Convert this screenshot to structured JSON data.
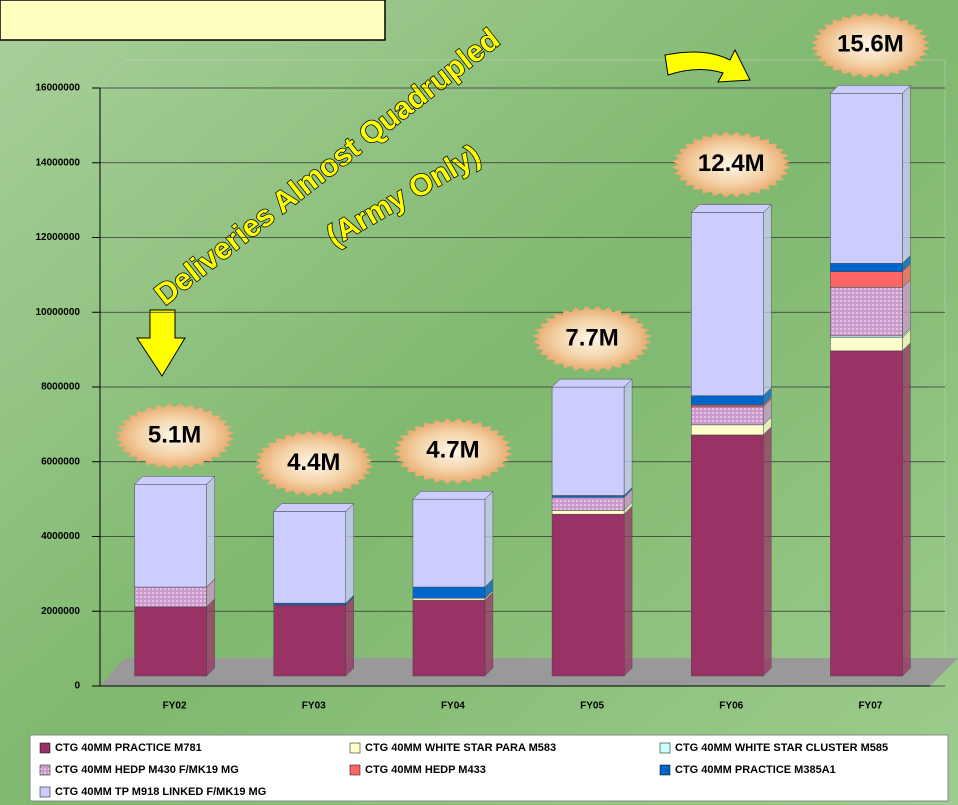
{
  "chart_data": {
    "type": "stacked_bar",
    "annotations": [
      "Deliveries Almost Quadrupled",
      "(Army Only)"
    ],
    "total_labels": [
      "5.1M",
      "4.4M",
      "4.7M",
      "7.7M",
      "12.4M",
      "15.6M"
    ],
    "categories": [
      "FY02",
      "FY03",
      "FY04",
      "FY05",
      "FY06",
      "FY07"
    ],
    "series": [
      {
        "name": "CTG 40MM PRACTICE M781",
        "color": "#993366",
        "values": [
          1850000,
          1900000,
          2030000,
          4330000,
          6450000,
          8700000
        ]
      },
      {
        "name": "CTG 40MM WHITE STAR PARA M583",
        "color": "#ffffcc",
        "values": [
          0,
          0,
          50000,
          100000,
          270000,
          350000
        ]
      },
      {
        "name": "CTG 40MM WHITE STAR CLUSTER M585",
        "color": "#ccffff",
        "values": [
          0,
          0,
          0,
          0,
          0,
          50000
        ]
      },
      {
        "name": "CTG 40MM HEDP M430 F/MK19 MG",
        "color": "#cc99cc",
        "values": [
          530000,
          0,
          0,
          350000,
          480000,
          1300000
        ]
      },
      {
        "name": "CTG 40MM HEDP M433",
        "color": "#ff6666",
        "values": [
          0,
          0,
          0,
          0,
          50000,
          420000
        ]
      },
      {
        "name": "CTG 40MM PRACTICE M385A1",
        "color": "#0066cc",
        "values": [
          0,
          50000,
          300000,
          50000,
          250000,
          220000
        ]
      },
      {
        "name": "CTG 40MM TP M918 LINKED F/MK19 MG",
        "color": "#ccccff",
        "values": [
          2750000,
          2450000,
          2350000,
          2900000,
          4900000,
          4550000
        ]
      }
    ],
    "ylim": [
      0,
      16000000
    ],
    "yticks": [
      0,
      2000000,
      4000000,
      6000000,
      8000000,
      10000000,
      12000000,
      14000000,
      16000000
    ],
    "grid": true
  }
}
